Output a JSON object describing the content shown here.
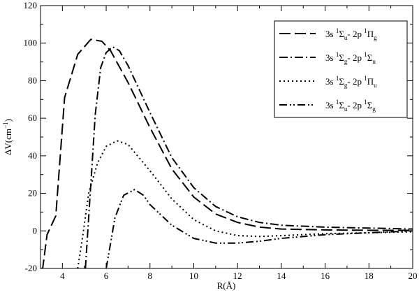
{
  "chart_data": {
    "type": "line",
    "xlabel": "R(Å)",
    "ylabel_parts": [
      "ΔV(cm",
      "−1",
      ")"
    ],
    "xlim": [
      3,
      20
    ],
    "ylim": [
      -20,
      120
    ],
    "xticks": [
      4,
      6,
      8,
      10,
      12,
      14,
      16,
      18,
      20
    ],
    "yticks": [
      -20,
      0,
      20,
      40,
      60,
      80,
      100,
      120
    ],
    "grid": false,
    "legend_position": "top-right",
    "series": [
      {
        "name": "3s ¹Σu- 2p ¹Πg",
        "legend": [
          "3s ",
          "1",
          "Σ",
          "u",
          "- 2p ",
          "1",
          "Π",
          "g"
        ],
        "style": "dash",
        "x": [
          3.0,
          3.1,
          3.3,
          3.7,
          4.1,
          4.7,
          5.3,
          5.8,
          6.2,
          7.0,
          8.0,
          9.0,
          10.0,
          11.0,
          12.0,
          13.0,
          14.0,
          16.0,
          18.0,
          20.0
        ],
        "y": [
          -20,
          -20,
          -2,
          8,
          71,
          94,
          102,
          101,
          96,
          79,
          55,
          33,
          18,
          9,
          4.5,
          2,
          1,
          0.5,
          0.3,
          0.3
        ]
      },
      {
        "name": "3s ¹Σg- 2p ¹Σu",
        "legend": [
          "3s ",
          "1",
          "Σ",
          "g",
          "- 2p ",
          "1",
          "Σ",
          "u"
        ],
        "style": "dashdot",
        "x": [
          5.05,
          5.3,
          5.5,
          5.75,
          6.0,
          6.3,
          6.6,
          7.0,
          8.0,
          9.0,
          10.0,
          11.0,
          12.0,
          13.0,
          14.0,
          16.0,
          18.0,
          20.0
        ],
        "y": [
          -20,
          25,
          62,
          87,
          95,
          98,
          96,
          88,
          63,
          39,
          23,
          13,
          7.5,
          4.5,
          3,
          2,
          1.5,
          1
        ]
      },
      {
        "name": "3s ¹Σg- 2p ¹Πu",
        "legend": [
          "3s ",
          "1",
          "Σ",
          "g",
          "- 2p ",
          "1",
          "Π",
          "u"
        ],
        "style": "dot",
        "x": [
          4.7,
          4.9,
          5.2,
          5.6,
          6.0,
          6.5,
          7.0,
          8.0,
          9.0,
          10.0,
          11.0,
          12.0,
          13.0,
          14.0,
          16.0,
          18.0,
          20.0
        ],
        "y": [
          -20,
          -5,
          20,
          36,
          45,
          48,
          46,
          32,
          17,
          6,
          0,
          -2.5,
          -3,
          -2.5,
          -1.5,
          -1,
          -0.5
        ]
      },
      {
        "name": "3s ¹Σu- 2p ¹Σg",
        "legend": [
          "3s ",
          "1",
          "Σ",
          "u",
          "- 2p ",
          "1",
          "Σ",
          "g"
        ],
        "style": "dashdotdot",
        "x": [
          6.0,
          6.4,
          6.8,
          7.3,
          7.7,
          8.0,
          9.0,
          10.0,
          11.0,
          12.0,
          13.0,
          14.0,
          16.0,
          18.0,
          20.0
        ],
        "y": [
          -20,
          7,
          19,
          22,
          19,
          14,
          3,
          -4,
          -6.5,
          -6.5,
          -5.5,
          -4,
          -2,
          -1,
          0
        ]
      }
    ]
  }
}
